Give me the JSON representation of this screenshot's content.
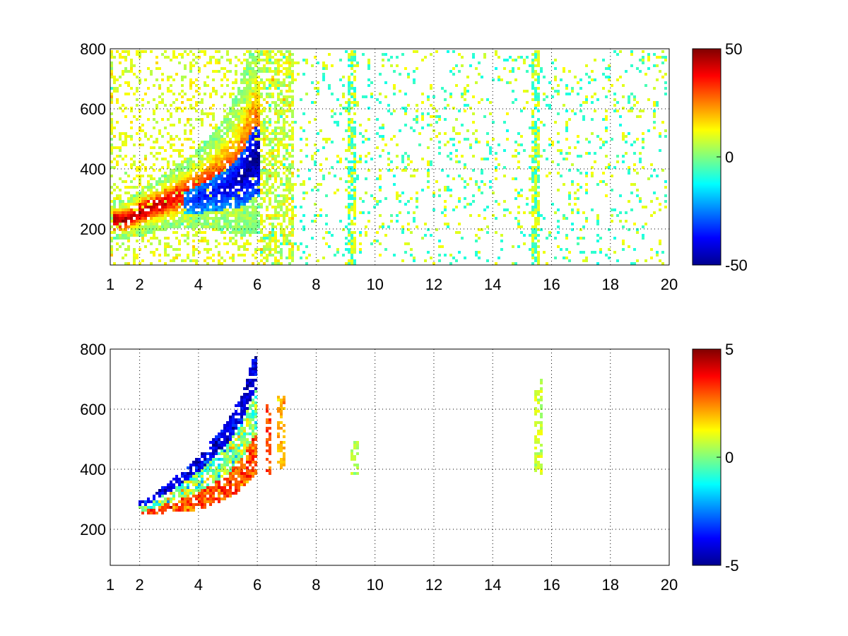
{
  "figure": {
    "background": "#ffffff"
  },
  "chart_data": [
    {
      "type": "heatmap",
      "title": "",
      "xlabel": "",
      "ylabel": "",
      "xlim": [
        1,
        20
      ],
      "ylim": [
        80,
        800
      ],
      "grid": true,
      "grid_style": "dotted",
      "colormap": "jet",
      "xticks": [
        1,
        2,
        4,
        6,
        8,
        10,
        12,
        14,
        16,
        18,
        20
      ],
      "xtick_labels": [
        "1",
        "2",
        "4",
        "6",
        "8",
        "10",
        "12",
        "14",
        "16",
        "18",
        "20"
      ],
      "yticks": [
        200,
        400,
        600,
        800
      ],
      "ytick_labels": [
        "200",
        "400",
        "600",
        "800"
      ],
      "colorbar": {
        "min": -50,
        "max": 50,
        "ticks": [
          50,
          0,
          -50
        ],
        "tick_labels": [
          "50",
          "0",
          "-50"
        ]
      },
      "ridge": {
        "x": [
          1.5,
          2.0,
          2.5,
          3.0,
          3.5,
          4.0,
          4.5,
          5.0,
          5.5,
          5.9
        ],
        "y_center": [
          230,
          255,
          275,
          295,
          315,
          335,
          360,
          390,
          440,
          520
        ],
        "y_spread": [
          40,
          50,
          55,
          60,
          70,
          85,
          100,
          125,
          165,
          210
        ],
        "positive_peak": 45,
        "negative_peak": -50
      },
      "noise_columns_x": [
        9.2,
        15.5
      ],
      "noise_level": 10
    },
    {
      "type": "heatmap",
      "title": "",
      "xlabel": "",
      "ylabel": "",
      "xlim": [
        1,
        20
      ],
      "ylim": [
        80,
        800
      ],
      "grid": true,
      "grid_style": "dotted",
      "colormap": "jet",
      "xticks": [
        1,
        2,
        4,
        6,
        8,
        10,
        12,
        14,
        16,
        18,
        20
      ],
      "xtick_labels": [
        "1",
        "2",
        "4",
        "6",
        "8",
        "10",
        "12",
        "14",
        "16",
        "18",
        "20"
      ],
      "yticks": [
        200,
        400,
        600,
        800
      ],
      "ytick_labels": [
        "200",
        "400",
        "600",
        "800"
      ],
      "colorbar": {
        "min": -5,
        "max": 5,
        "ticks": [
          5,
          0,
          -5
        ],
        "tick_labels": [
          "5",
          "0",
          "-5"
        ]
      },
      "ridge": {
        "x": [
          2.2,
          2.5,
          3.0,
          3.5,
          4.0,
          4.5,
          5.0,
          5.5,
          5.9
        ],
        "y_center": [
          260,
          270,
          285,
          300,
          320,
          345,
          380,
          430,
          500
        ],
        "y_spread": [
          25,
          35,
          50,
          70,
          90,
          110,
          130,
          160,
          200
        ]
      },
      "isolated_clusters": [
        {
          "x": 6.4,
          "y_range": [
            380,
            620
          ],
          "level": 3
        },
        {
          "x": 6.8,
          "y_range": [
            400,
            640
          ],
          "level": 2
        },
        {
          "x": 9.3,
          "y_range": [
            370,
            490
          ],
          "level": 0.5
        },
        {
          "x": 15.55,
          "y_range": [
            380,
            700
          ],
          "level": 0.8
        }
      ]
    }
  ]
}
